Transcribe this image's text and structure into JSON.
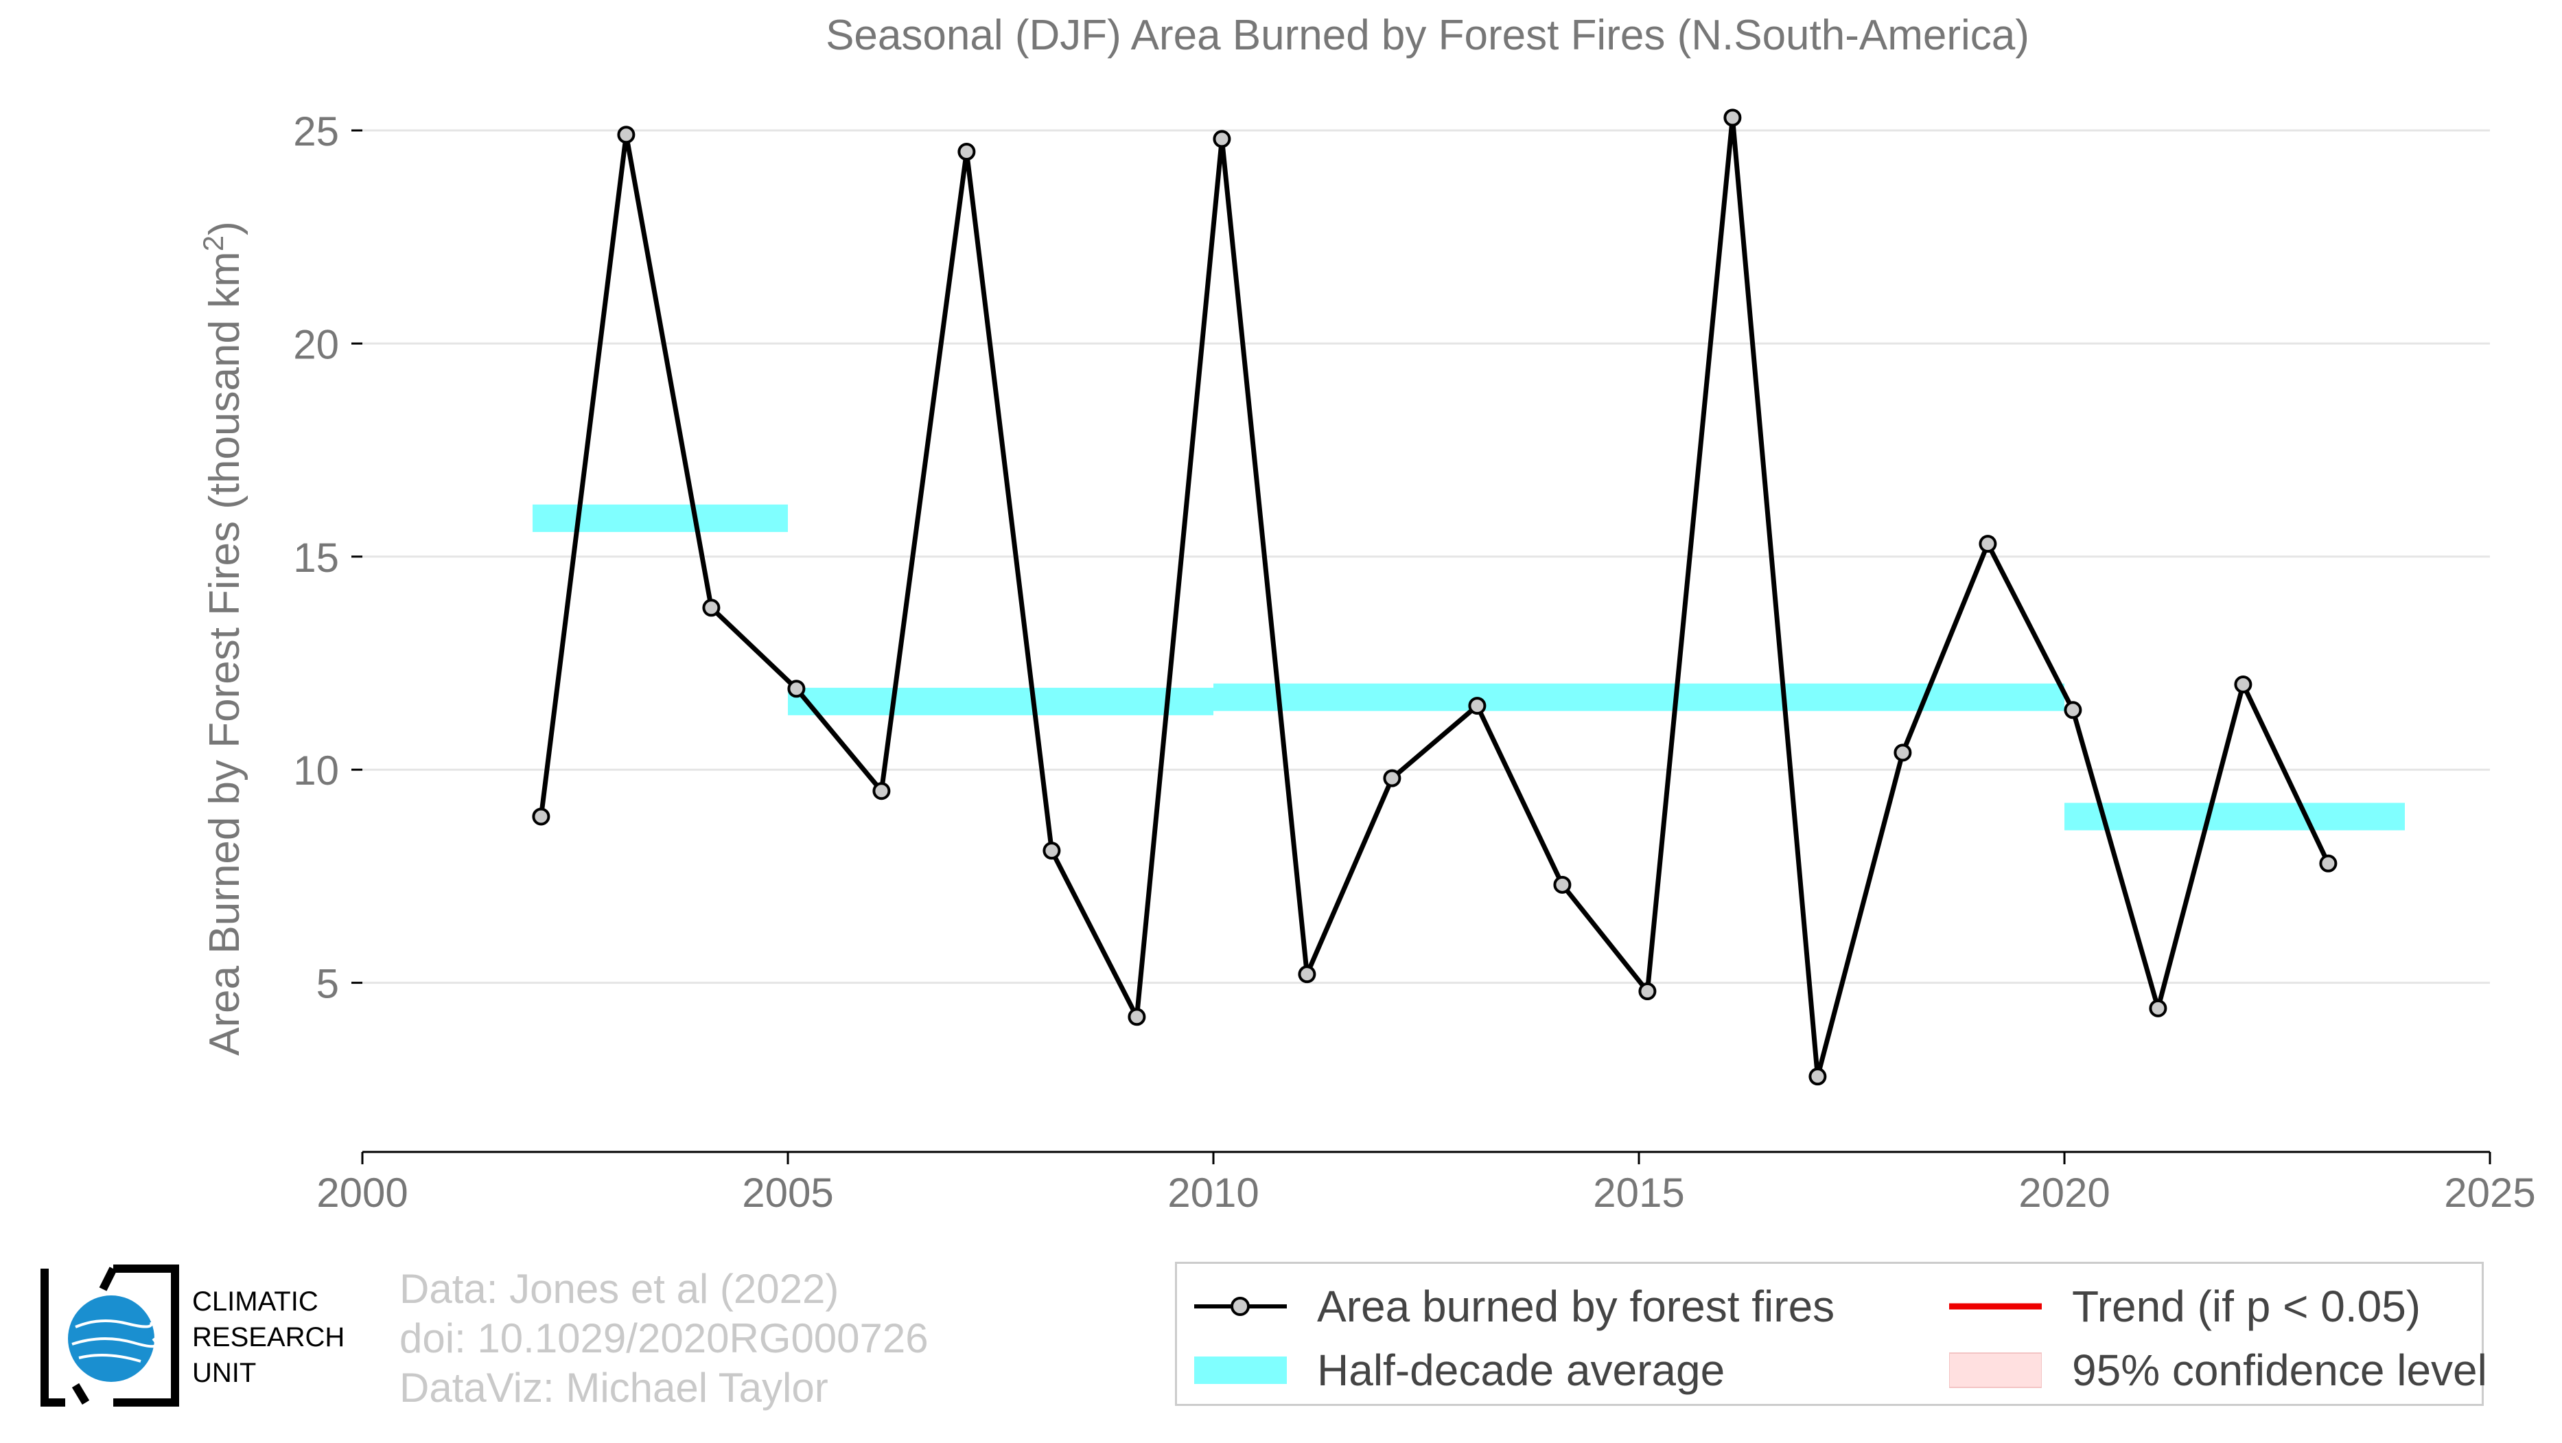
{
  "chart_data": {
    "type": "line",
    "title": "Seasonal (DJF) Area Burned by Forest Fires (N.South-America)",
    "ylabel": "Area Burned by Forest Fires (thousand km",
    "ylabel_superscript": "2",
    "ylabel_suffix": ")",
    "xlabel": "",
    "xlim": [
      2000,
      2025
    ],
    "ylim": [
      1,
      27
    ],
    "x_ticks": [
      2000,
      2005,
      2010,
      2015,
      2020,
      2025
    ],
    "y_ticks": [
      5,
      10,
      15,
      20,
      25
    ],
    "grid": "horizontal",
    "series": [
      {
        "name": "Area burned by forest fires",
        "color": "#000000",
        "marker_fill": "#cccccc",
        "x": [
          2002.1,
          2003.1,
          2004.1,
          2005.1,
          2006.1,
          2007.1,
          2008.1,
          2009.1,
          2010.1,
          2011.1,
          2012.1,
          2013.1,
          2014.1,
          2015.1,
          2016.1,
          2017.1,
          2018.1,
          2019.1,
          2020.1,
          2021.1,
          2022.1,
          2023.1
        ],
        "values": [
          8.9,
          24.9,
          13.8,
          11.9,
          9.5,
          24.5,
          8.1,
          4.2,
          24.8,
          5.2,
          9.8,
          11.5,
          7.3,
          4.8,
          25.3,
          2.8,
          10.4,
          15.3,
          11.4,
          4.4,
          12.0,
          7.8
        ]
      },
      {
        "name": "Half-decade average",
        "color": "#80ffff",
        "segments": [
          {
            "x_start": 2002,
            "x_end": 2005,
            "value": 15.9
          },
          {
            "x_start": 2005,
            "x_end": 2010,
            "value": 11.6
          },
          {
            "x_start": 2010,
            "x_end": 2020,
            "value": 11.7
          },
          {
            "x_start": 2020,
            "x_end": 2024,
            "value": 8.9
          }
        ]
      }
    ],
    "legend": {
      "placement": "bottom-right",
      "items": [
        {
          "label": "Area burned by forest fires",
          "type": "line-marker",
          "color": "#000000"
        },
        {
          "label": "Trend (if p < 0.05)",
          "type": "line",
          "color": "#ee0000"
        },
        {
          "label": "Half-decade average",
          "type": "band",
          "color": "#80ffff"
        },
        {
          "label": "95% confidence level",
          "type": "band",
          "color": "#ffe0e0"
        }
      ]
    }
  },
  "credits": {
    "line1": "Data: Jones et al (2022)",
    "line2": "doi: 10.1029/2020RG000726",
    "line3": "DataViz: Michael Taylor"
  },
  "logo": {
    "line1": "CLIMATIC",
    "line2": "RESEARCH",
    "line3": "UNIT",
    "color": "#1a8fd0"
  },
  "colors": {
    "text": "#777777",
    "grid": "#e5e5e5",
    "axis": "#000000"
  }
}
